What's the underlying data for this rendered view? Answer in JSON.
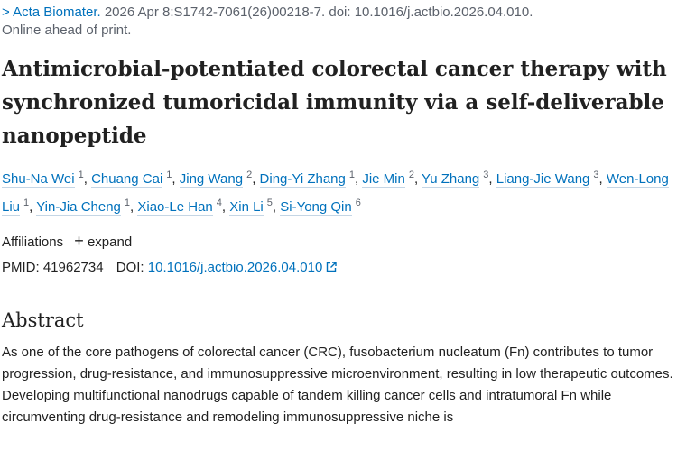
{
  "citation": {
    "journal": "Acta Biomater.",
    "details": "2026 Apr 8:S1742-7061(26)00218-7. doi: 10.1016/j.actbio.2026.04.010.",
    "status": "Online ahead of print."
  },
  "title": "Antimicrobial-potentiated colorectal cancer therapy with synchronized tumoricidal immunity via a self-deliverable nanopeptide",
  "authors": [
    {
      "name": "Shu-Na Wei",
      "aff": 1
    },
    {
      "name": "Chuang Cai",
      "aff": 1
    },
    {
      "name": "Jing Wang",
      "aff": 2
    },
    {
      "name": "Ding-Yi Zhang",
      "aff": 1
    },
    {
      "name": "Jie Min",
      "aff": 2
    },
    {
      "name": "Yu Zhang",
      "aff": 3
    },
    {
      "name": "Liang-Jie Wang",
      "aff": 3
    },
    {
      "name": "Wen-Long Liu",
      "aff": 1
    },
    {
      "name": "Yin-Jia Cheng",
      "aff": 1
    },
    {
      "name": "Xiao-Le Han",
      "aff": 4
    },
    {
      "name": "Xin Li",
      "aff": 5
    },
    {
      "name": "Si-Yong Qin",
      "aff": 6
    }
  ],
  "affiliations": {
    "label": "Affiliations",
    "expand": "expand"
  },
  "ids": {
    "pmid_label": "PMID:",
    "pmid": "41962734",
    "doi_label": "DOI:",
    "doi": "10.1016/j.actbio.2026.04.010"
  },
  "abstract": {
    "heading": "Abstract",
    "text": "As one of the core pathogens of colorectal cancer (CRC), fusobacterium nucleatum (Fn) contributes to tumor progression, drug-resistance, and immunosuppressive microenvironment, resulting in low therapeutic outcomes. Developing multifunctional nanodrugs capable of tandem killing cancer cells and intratumoral Fn while circumventing drug-resistance and remodeling immunosuppressive niche is"
  }
}
